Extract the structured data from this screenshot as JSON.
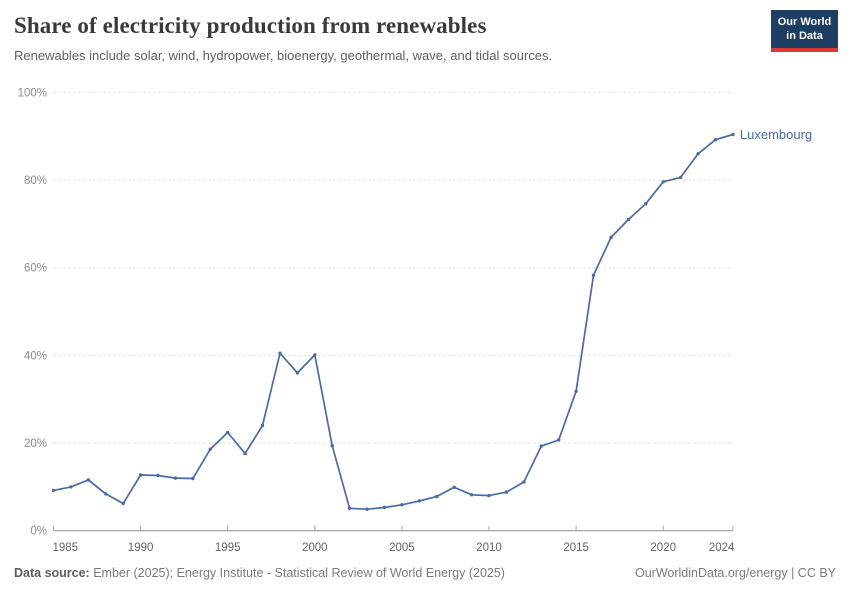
{
  "header": {
    "title": "Share of electricity production from renewables",
    "subtitle": "Renewables include solar, wind, hydropower, bioenergy, geothermal, wave, and tidal sources.",
    "logo": {
      "line1": "Our World",
      "line2": "in Data"
    }
  },
  "chart_data": {
    "type": "line",
    "title": "Share of electricity production from renewables",
    "entity": "Luxembourg",
    "x": [
      1985,
      1986,
      1987,
      1988,
      1989,
      1990,
      1991,
      1992,
      1993,
      1994,
      1995,
      1996,
      1997,
      1998,
      1999,
      2000,
      2001,
      2002,
      2003,
      2004,
      2005,
      2006,
      2007,
      2008,
      2009,
      2010,
      2011,
      2012,
      2013,
      2014,
      2015,
      2016,
      2017,
      2018,
      2019,
      2020,
      2021,
      2022,
      2023,
      2024
    ],
    "series": [
      {
        "name": "Luxembourg",
        "values": [
          9.2,
          10.0,
          11.6,
          8.4,
          6.2,
          12.7,
          12.6,
          12.0,
          11.9,
          18.6,
          22.4,
          17.6,
          24.0,
          40.5,
          36.0,
          40.1,
          19.4,
          5.1,
          4.9,
          5.3,
          5.9,
          6.8,
          7.8,
          9.9,
          8.2,
          8.0,
          8.8,
          11.1,
          19.3,
          20.7,
          31.8,
          58.3,
          66.9,
          71.0,
          74.6,
          79.6,
          80.6,
          86.0,
          89.2,
          90.4
        ]
      }
    ],
    "xlim": [
      1985,
      2024
    ],
    "ylim": [
      0,
      100
    ],
    "xticks": [
      1985,
      1990,
      1995,
      2000,
      2005,
      2010,
      2015,
      2020,
      2024
    ],
    "yticks": [
      0,
      20,
      40,
      60,
      80,
      100
    ],
    "ytick_suffix": "%",
    "grid": "horizontal-dashed",
    "legend_position": "end-of-line-label"
  },
  "colors": {
    "line": "#4a6aa5",
    "grid": "#dadada",
    "axis": "#8f8f8f",
    "tick": "#a8a8a8",
    "ytick_label": "#8c8c8c",
    "xtick_label": "#636363",
    "title": "#3a3a3a",
    "subtitle": "#5f5f5f",
    "logo_bg": "#1d3d63",
    "logo_red": "#d93a34"
  },
  "footer": {
    "source_label": "Data source:",
    "source_text": " Ember (2025); Energy Institute - Statistical Review of World Energy (2025)",
    "credit": "OurWorldinData.org/energy | CC BY"
  }
}
